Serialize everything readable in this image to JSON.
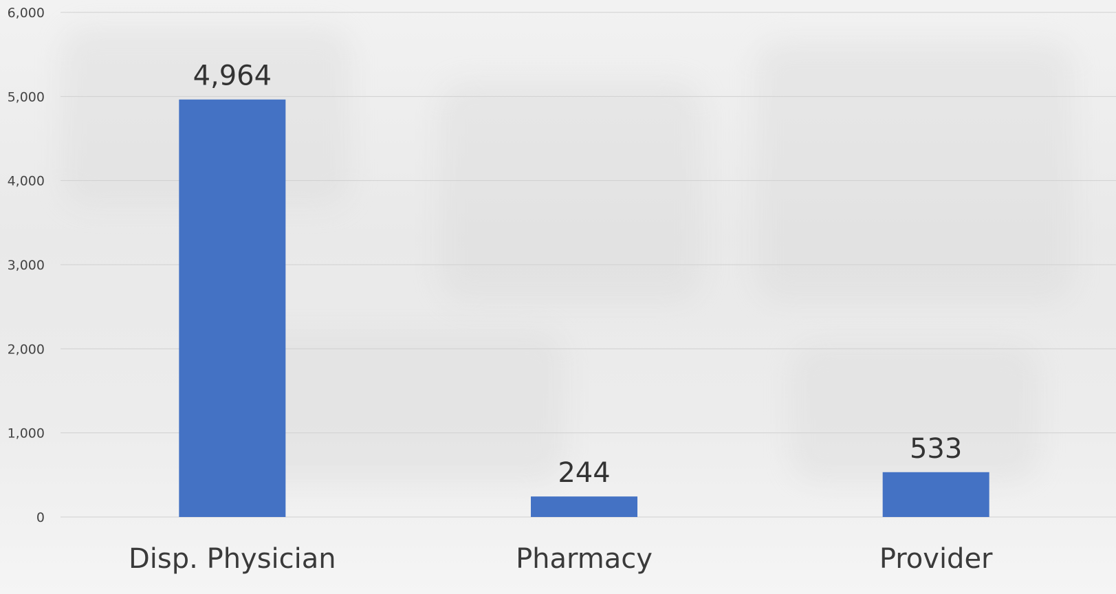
{
  "chart_data": {
    "type": "bar",
    "categories": [
      "Disp. Physician",
      "Pharmacy",
      "Provider"
    ],
    "values": [
      4964,
      244,
      533
    ],
    "data_labels": [
      "4,964",
      "244",
      "533"
    ],
    "yticks": [
      0,
      1000,
      2000,
      3000,
      4000,
      5000,
      6000
    ],
    "ytick_labels": [
      "0",
      "1,000",
      "2,000",
      "3,000",
      "4,000",
      "5,000",
      "6,000"
    ],
    "ylim": [
      0,
      6000
    ],
    "grid": true,
    "legend": "none",
    "bar_color": "#4472c4",
    "grid_color": "#d0d0d0"
  }
}
